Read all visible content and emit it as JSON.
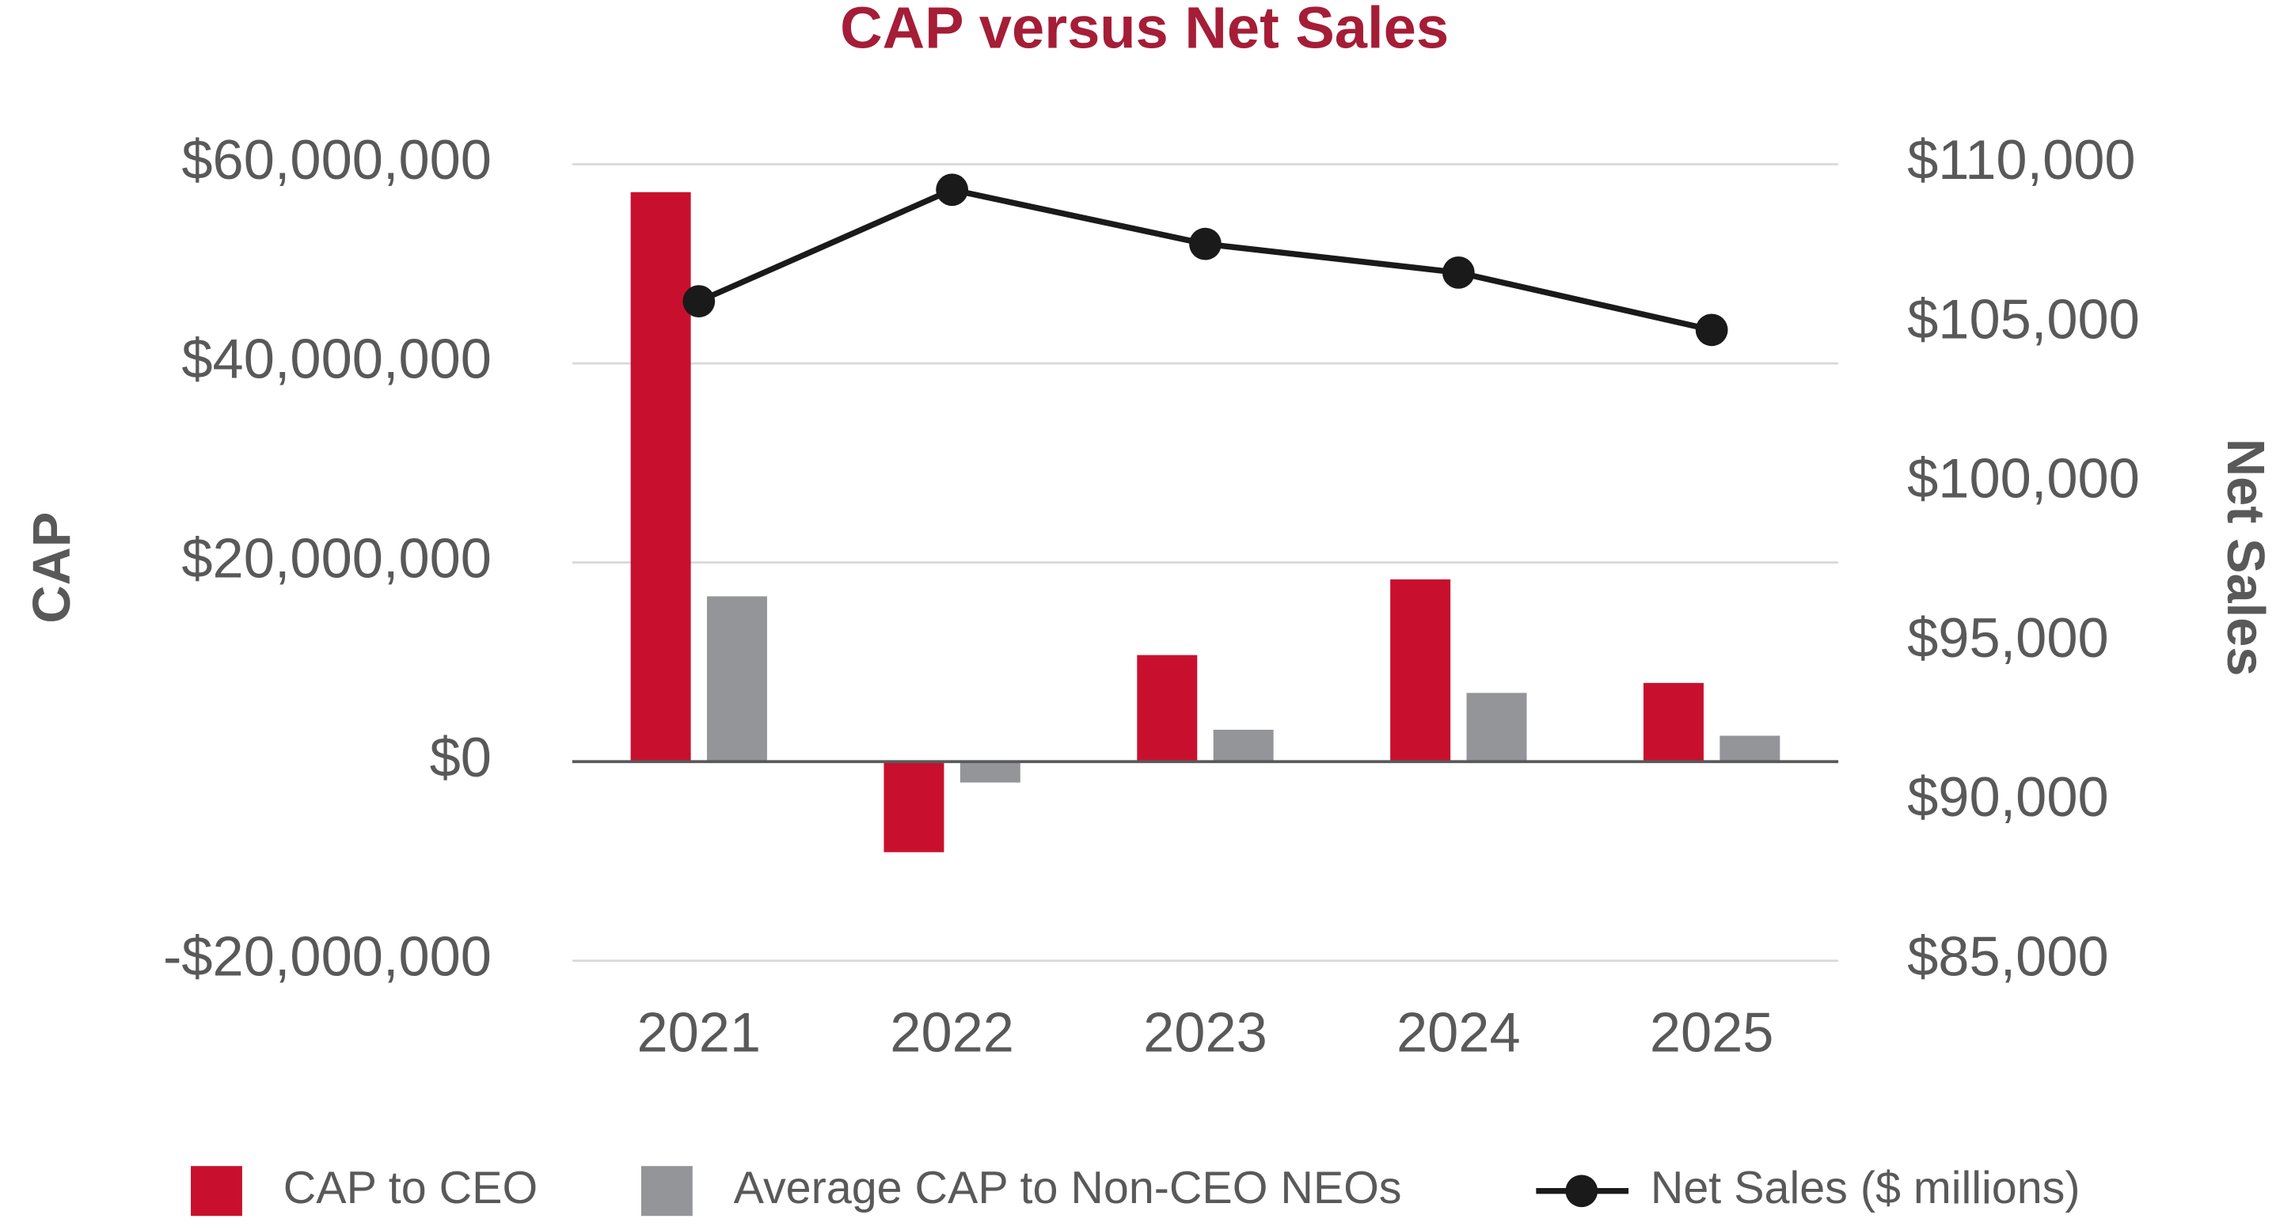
{
  "chart_data": {
    "type": "bar",
    "title": "CAP versus Net Sales",
    "y_label": "CAP",
    "y2_label": "Net Sales",
    "categories": [
      "2021",
      "2022",
      "2023",
      "2024",
      "2025"
    ],
    "series": [
      {
        "name": "CAP to CEO",
        "type": "bar",
        "color": "#c8102e",
        "values": [
          57200000,
          -9100000,
          10700000,
          18300000,
          7900000
        ]
      },
      {
        "name": "Average CAP to Non-CEO NEOs",
        "type": "bar",
        "color": "#939598",
        "values": [
          16600000,
          -2100000,
          3200000,
          6900000,
          2600000
        ]
      },
      {
        "name": "Net Sales ($ millions)",
        "type": "line",
        "axis": "y2",
        "color": "#1a1a1a",
        "values": [
          105700,
          109200,
          107500,
          106600,
          104800
        ]
      }
    ],
    "ylim": [
      -20000000,
      60000000
    ],
    "yticks": [
      {
        "value": -20000000,
        "label": "-$20,000,000"
      },
      {
        "value": 0,
        "label": "$0"
      },
      {
        "value": 20000000,
        "label": "$20,000,000"
      },
      {
        "value": 40000000,
        "label": "$40,000,000"
      },
      {
        "value": 60000000,
        "label": "$60,000,000"
      }
    ],
    "y2lim": [
      85000,
      110000
    ],
    "y2ticks": [
      {
        "value": 85000,
        "label": "$85,000"
      },
      {
        "value": 90000,
        "label": "$90,000"
      },
      {
        "value": 95000,
        "label": "$95,000"
      },
      {
        "value": 100000,
        "label": "$100,000"
      },
      {
        "value": 105000,
        "label": "$105,000"
      },
      {
        "value": 110000,
        "label": "$110,000"
      }
    ],
    "grid": true,
    "legend": "bottom"
  }
}
